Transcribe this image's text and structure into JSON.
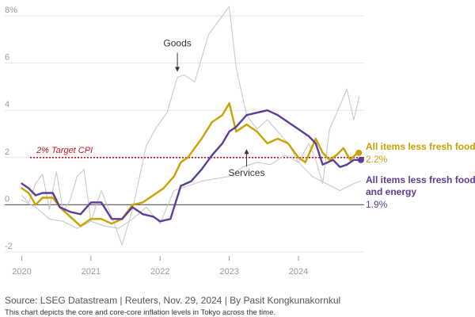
{
  "chart_data": {
    "type": "line",
    "title": "",
    "xlabel": "",
    "ylabel": "",
    "ylim": [
      -2,
      8
    ],
    "y_ticks": [
      -2,
      0,
      2,
      4,
      6,
      8
    ],
    "y_tick_labels": [
      "-2",
      "0",
      "2",
      "4",
      "6",
      "8%"
    ],
    "x_range": [
      2019.8,
      2024.95
    ],
    "x_ticks": [
      2020,
      2021,
      2022,
      2023,
      2024
    ],
    "x_tick_labels": [
      "2020",
      "2021",
      "2022",
      "2023",
      "2024"
    ],
    "target": {
      "value": 2,
      "label": "2% Target CPI"
    },
    "series": [
      {
        "name": "Goods",
        "color": "#c8c8c8",
        "points": [
          [
            2020.0,
            0.4
          ],
          [
            2020.1,
            0.1
          ],
          [
            2020.2,
            0.9
          ],
          [
            2020.3,
            1.3
          ],
          [
            2020.4,
            -0.2
          ],
          [
            2020.5,
            1.4
          ],
          [
            2020.6,
            -0.3
          ],
          [
            2020.7,
            0.2
          ],
          [
            2020.8,
            1.2
          ],
          [
            2020.9,
            1.5
          ],
          [
            2021.0,
            -0.7
          ],
          [
            2021.15,
            0.6
          ],
          [
            2021.3,
            -0.5
          ],
          [
            2021.45,
            -1.7
          ],
          [
            2021.6,
            -0.2
          ],
          [
            2021.8,
            2.5
          ],
          [
            2021.95,
            3.3
          ],
          [
            2022.1,
            3.9
          ],
          [
            2022.25,
            5.4
          ],
          [
            2022.35,
            5.5
          ],
          [
            2022.5,
            5.2
          ],
          [
            2022.7,
            7.2
          ],
          [
            2022.85,
            7.8
          ],
          [
            2023.0,
            8.4
          ],
          [
            2023.1,
            5.8
          ],
          [
            2023.25,
            3.8
          ],
          [
            2023.4,
            3.2
          ],
          [
            2023.55,
            3.6
          ],
          [
            2023.7,
            3.1
          ],
          [
            2023.85,
            2.6
          ],
          [
            2024.0,
            1.8
          ],
          [
            2024.15,
            2.6
          ],
          [
            2024.25,
            1.9
          ],
          [
            2024.35,
            0.9
          ],
          [
            2024.45,
            3.2
          ],
          [
            2024.6,
            4.2
          ],
          [
            2024.7,
            4.9
          ],
          [
            2024.8,
            3.6
          ],
          [
            2024.88,
            4.6
          ]
        ]
      },
      {
        "name": "Services",
        "color": "#c8c8c8",
        "points": [
          [
            2020.0,
            0.2
          ],
          [
            2020.2,
            -0.1
          ],
          [
            2020.4,
            -0.6
          ],
          [
            2020.6,
            -0.7
          ],
          [
            2020.8,
            -1.0
          ],
          [
            2021.0,
            -0.7
          ],
          [
            2021.2,
            -0.9
          ],
          [
            2021.4,
            -1.0
          ],
          [
            2021.6,
            -0.6
          ],
          [
            2021.8,
            -0.1
          ],
          [
            2022.0,
            -0.8
          ],
          [
            2022.2,
            0.6
          ],
          [
            2022.4,
            0.8
          ],
          [
            2022.6,
            1.0
          ],
          [
            2022.8,
            1.1
          ],
          [
            2023.0,
            1.2
          ],
          [
            2023.2,
            1.6
          ],
          [
            2023.4,
            1.8
          ],
          [
            2023.6,
            1.7
          ],
          [
            2023.8,
            2.1
          ],
          [
            2024.0,
            1.8
          ],
          [
            2024.2,
            1.2
          ],
          [
            2024.4,
            0.9
          ],
          [
            2024.6,
            0.6
          ],
          [
            2024.8,
            0.9
          ],
          [
            2024.9,
            1.0
          ]
        ]
      },
      {
        "name": "All items less fresh food",
        "color": "#c9a100",
        "label": "All items less fresh food",
        "value_label": "2.2%",
        "points": [
          [
            2020.0,
            0.7
          ],
          [
            2020.1,
            0.5
          ],
          [
            2020.2,
            0.0
          ],
          [
            2020.3,
            0.3
          ],
          [
            2020.45,
            0.3
          ],
          [
            2020.55,
            -0.1
          ],
          [
            2020.7,
            -0.5
          ],
          [
            2020.85,
            -0.9
          ],
          [
            2021.0,
            -0.6
          ],
          [
            2021.15,
            -0.6
          ],
          [
            2021.3,
            -0.8
          ],
          [
            2021.45,
            -0.6
          ],
          [
            2021.6,
            0.0
          ],
          [
            2021.75,
            0.1
          ],
          [
            2021.9,
            0.4
          ],
          [
            2022.05,
            0.7
          ],
          [
            2022.2,
            1.2
          ],
          [
            2022.3,
            1.8
          ],
          [
            2022.4,
            2.0
          ],
          [
            2022.5,
            2.4
          ],
          [
            2022.6,
            2.8
          ],
          [
            2022.75,
            3.5
          ],
          [
            2022.9,
            3.8
          ],
          [
            2023.0,
            4.3
          ],
          [
            2023.1,
            3.1
          ],
          [
            2023.25,
            3.4
          ],
          [
            2023.4,
            3.1
          ],
          [
            2023.55,
            2.6
          ],
          [
            2023.7,
            2.8
          ],
          [
            2023.85,
            2.6
          ],
          [
            2024.0,
            2.0
          ],
          [
            2024.1,
            1.8
          ],
          [
            2024.25,
            2.8
          ],
          [
            2024.35,
            2.2
          ],
          [
            2024.45,
            1.9
          ],
          [
            2024.55,
            2.1
          ],
          [
            2024.65,
            2.4
          ],
          [
            2024.75,
            1.9
          ],
          [
            2024.85,
            2.2
          ]
        ]
      },
      {
        "name": "All items less fresh food and energy",
        "color": "#5b3c96",
        "label": "All items less fresh food and energy",
        "value_label": "1.9%",
        "points": [
          [
            2020.0,
            0.9
          ],
          [
            2020.1,
            0.7
          ],
          [
            2020.2,
            0.4
          ],
          [
            2020.3,
            0.5
          ],
          [
            2020.45,
            0.5
          ],
          [
            2020.55,
            -0.1
          ],
          [
            2020.7,
            -0.3
          ],
          [
            2020.85,
            -0.4
          ],
          [
            2021.0,
            0.1
          ],
          [
            2021.15,
            0.1
          ],
          [
            2021.3,
            -0.6
          ],
          [
            2021.45,
            -0.6
          ],
          [
            2021.6,
            -0.1
          ],
          [
            2021.75,
            -0.4
          ],
          [
            2021.9,
            -0.5
          ],
          [
            2022.0,
            -0.7
          ],
          [
            2022.15,
            -0.6
          ],
          [
            2022.3,
            0.8
          ],
          [
            2022.45,
            1.0
          ],
          [
            2022.6,
            1.5
          ],
          [
            2022.75,
            2.1
          ],
          [
            2022.9,
            2.6
          ],
          [
            2023.0,
            3.1
          ],
          [
            2023.1,
            3.3
          ],
          [
            2023.25,
            3.8
          ],
          [
            2023.4,
            3.9
          ],
          [
            2023.55,
            4.0
          ],
          [
            2023.7,
            3.8
          ],
          [
            2023.85,
            3.5
          ],
          [
            2024.0,
            3.2
          ],
          [
            2024.15,
            2.9
          ],
          [
            2024.25,
            2.6
          ],
          [
            2024.35,
            1.7
          ],
          [
            2024.5,
            1.9
          ],
          [
            2024.6,
            1.6
          ],
          [
            2024.7,
            1.7
          ],
          [
            2024.8,
            1.9
          ],
          [
            2024.88,
            1.9
          ]
        ]
      }
    ],
    "annotations": [
      {
        "text": "Goods",
        "x": 2022.25,
        "y": 5.5,
        "direction": "down"
      },
      {
        "text": "Services",
        "x": 2023.25,
        "y": 1.55,
        "direction": "up"
      }
    ]
  },
  "footer": {
    "source": "Source: LSEG Datastream | Reuters, Nov. 29, 2024 | By Pasit Kongkunakornkul",
    "note": "This chart depicts the core and core-core inflation levels in Tokyo across the time."
  }
}
